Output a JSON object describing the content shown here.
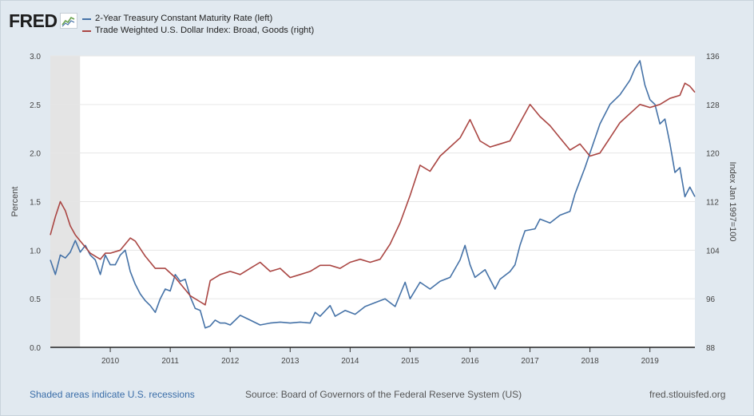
{
  "brand": {
    "logo_text": "FRED"
  },
  "chart_data": {
    "type": "line",
    "x_range": [
      "2009-01-01",
      "2019-10-01"
    ],
    "x_ticks": [
      "2010",
      "2011",
      "2012",
      "2013",
      "2014",
      "2015",
      "2016",
      "2017",
      "2018",
      "2019"
    ],
    "y_left": {
      "label": "Percent",
      "ticks": [
        "0.0",
        "0.5",
        "1.0",
        "1.5",
        "2.0",
        "2.5",
        "3.0"
      ],
      "range": [
        0,
        3
      ]
    },
    "y_right": {
      "label": "Index Jan 1997=100",
      "ticks": [
        "88",
        "96",
        "104",
        "112",
        "120",
        "128",
        "136"
      ],
      "range": [
        88,
        136
      ]
    },
    "recession": {
      "start": "2009-01-01",
      "end": "2009-06-30"
    },
    "grid": true,
    "legend_position": "top-left",
    "series": [
      {
        "name": "2-Year Treasury Constant Maturity Rate (left)",
        "axis": "left",
        "color": "#4572a7",
        "points": [
          [
            "2009-01",
            0.9
          ],
          [
            "2009-02",
            0.75
          ],
          [
            "2009-03",
            0.95
          ],
          [
            "2009-04",
            0.92
          ],
          [
            "2009-05",
            0.98
          ],
          [
            "2009-06",
            1.1
          ],
          [
            "2009-07",
            0.98
          ],
          [
            "2009-08",
            1.05
          ],
          [
            "2009-09",
            0.95
          ],
          [
            "2009-10",
            0.9
          ],
          [
            "2009-11",
            0.75
          ],
          [
            "2009-12",
            0.95
          ],
          [
            "2010-01",
            0.85
          ],
          [
            "2010-02",
            0.85
          ],
          [
            "2010-03",
            0.95
          ],
          [
            "2010-04",
            1.0
          ],
          [
            "2010-05",
            0.78
          ],
          [
            "2010-06",
            0.65
          ],
          [
            "2010-07",
            0.55
          ],
          [
            "2010-08",
            0.48
          ],
          [
            "2010-09",
            0.43
          ],
          [
            "2010-10",
            0.36
          ],
          [
            "2010-11",
            0.5
          ],
          [
            "2010-12",
            0.6
          ],
          [
            "2011-01",
            0.58
          ],
          [
            "2011-02",
            0.75
          ],
          [
            "2011-03",
            0.68
          ],
          [
            "2011-04",
            0.7
          ],
          [
            "2011-05",
            0.52
          ],
          [
            "2011-06",
            0.4
          ],
          [
            "2011-07",
            0.38
          ],
          [
            "2011-08",
            0.2
          ],
          [
            "2011-09",
            0.22
          ],
          [
            "2011-10",
            0.28
          ],
          [
            "2011-11",
            0.25
          ],
          [
            "2011-12",
            0.25
          ],
          [
            "2012-01",
            0.23
          ],
          [
            "2012-03",
            0.33
          ],
          [
            "2012-05",
            0.28
          ],
          [
            "2012-07",
            0.23
          ],
          [
            "2012-09",
            0.25
          ],
          [
            "2012-11",
            0.26
          ],
          [
            "2013-01",
            0.25
          ],
          [
            "2013-03",
            0.26
          ],
          [
            "2013-05",
            0.25
          ],
          [
            "2013-06",
            0.36
          ],
          [
            "2013-07",
            0.32
          ],
          [
            "2013-09",
            0.43
          ],
          [
            "2013-10",
            0.32
          ],
          [
            "2013-12",
            0.38
          ],
          [
            "2014-02",
            0.34
          ],
          [
            "2014-04",
            0.42
          ],
          [
            "2014-06",
            0.46
          ],
          [
            "2014-08",
            0.5
          ],
          [
            "2014-10",
            0.42
          ],
          [
            "2014-12",
            0.67
          ],
          [
            "2015-01",
            0.5
          ],
          [
            "2015-03",
            0.67
          ],
          [
            "2015-05",
            0.6
          ],
          [
            "2015-07",
            0.68
          ],
          [
            "2015-09",
            0.72
          ],
          [
            "2015-11",
            0.9
          ],
          [
            "2015-12",
            1.05
          ],
          [
            "2016-01",
            0.85
          ],
          [
            "2016-02",
            0.72
          ],
          [
            "2016-04",
            0.8
          ],
          [
            "2016-06",
            0.6
          ],
          [
            "2016-07",
            0.7
          ],
          [
            "2016-09",
            0.78
          ],
          [
            "2016-10",
            0.85
          ],
          [
            "2016-11",
            1.05
          ],
          [
            "2016-12",
            1.2
          ],
          [
            "2017-02",
            1.22
          ],
          [
            "2017-03",
            1.32
          ],
          [
            "2017-05",
            1.28
          ],
          [
            "2017-07",
            1.36
          ],
          [
            "2017-09",
            1.4
          ],
          [
            "2017-10",
            1.58
          ],
          [
            "2017-12",
            1.85
          ],
          [
            "2018-01",
            2.0
          ],
          [
            "2018-03",
            2.3
          ],
          [
            "2018-05",
            2.5
          ],
          [
            "2018-07",
            2.6
          ],
          [
            "2018-09",
            2.75
          ],
          [
            "2018-10",
            2.87
          ],
          [
            "2018-11",
            2.95
          ],
          [
            "2018-12",
            2.7
          ],
          [
            "2019-01",
            2.55
          ],
          [
            "2019-02",
            2.5
          ],
          [
            "2019-03",
            2.3
          ],
          [
            "2019-04",
            2.35
          ],
          [
            "2019-05",
            2.1
          ],
          [
            "2019-06",
            1.8
          ],
          [
            "2019-07",
            1.85
          ],
          [
            "2019-08",
            1.55
          ],
          [
            "2019-09",
            1.65
          ],
          [
            "2019-10",
            1.55
          ]
        ]
      },
      {
        "name": "Trade Weighted U.S. Dollar Index: Broad, Goods (right)",
        "axis": "right",
        "color": "#aa4643",
        "points": [
          [
            "2009-01",
            106.5
          ],
          [
            "2009-02",
            109.5
          ],
          [
            "2009-03",
            112.0
          ],
          [
            "2009-04",
            110.5
          ],
          [
            "2009-05",
            108.0
          ],
          [
            "2009-06",
            106.5
          ],
          [
            "2009-07",
            105.5
          ],
          [
            "2009-08",
            104.5
          ],
          [
            "2009-09",
            103.5
          ],
          [
            "2009-10",
            103.0
          ],
          [
            "2009-11",
            102.5
          ],
          [
            "2009-12",
            103.5
          ],
          [
            "2010-01",
            103.5
          ],
          [
            "2010-03",
            104.0
          ],
          [
            "2010-05",
            106.0
          ],
          [
            "2010-06",
            105.5
          ],
          [
            "2010-08",
            103.0
          ],
          [
            "2010-10",
            101.0
          ],
          [
            "2010-12",
            101.0
          ],
          [
            "2011-02",
            99.5
          ],
          [
            "2011-04",
            97.5
          ],
          [
            "2011-05",
            96.5
          ],
          [
            "2011-07",
            95.5
          ],
          [
            "2011-08",
            95.0
          ],
          [
            "2011-09",
            99.0
          ],
          [
            "2011-11",
            100.0
          ],
          [
            "2012-01",
            100.5
          ],
          [
            "2012-03",
            100.0
          ],
          [
            "2012-05",
            101.0
          ],
          [
            "2012-07",
            102.0
          ],
          [
            "2012-09",
            100.5
          ],
          [
            "2012-11",
            101.0
          ],
          [
            "2013-01",
            99.5
          ],
          [
            "2013-03",
            100.0
          ],
          [
            "2013-05",
            100.5
          ],
          [
            "2013-07",
            101.5
          ],
          [
            "2013-09",
            101.5
          ],
          [
            "2013-11",
            101.0
          ],
          [
            "2014-01",
            102.0
          ],
          [
            "2014-03",
            102.5
          ],
          [
            "2014-05",
            102.0
          ],
          [
            "2014-07",
            102.5
          ],
          [
            "2014-09",
            105.0
          ],
          [
            "2014-11",
            108.5
          ],
          [
            "2015-01",
            113.0
          ],
          [
            "2015-03",
            118.0
          ],
          [
            "2015-05",
            117.0
          ],
          [
            "2015-07",
            119.5
          ],
          [
            "2015-09",
            121.0
          ],
          [
            "2015-11",
            122.5
          ],
          [
            "2016-01",
            125.5
          ],
          [
            "2016-03",
            122.0
          ],
          [
            "2016-05",
            121.0
          ],
          [
            "2016-07",
            121.5
          ],
          [
            "2016-09",
            122.0
          ],
          [
            "2016-11",
            125.0
          ],
          [
            "2017-01",
            128.0
          ],
          [
            "2017-03",
            126.0
          ],
          [
            "2017-05",
            124.5
          ],
          [
            "2017-07",
            122.5
          ],
          [
            "2017-09",
            120.5
          ],
          [
            "2017-11",
            121.5
          ],
          [
            "2018-01",
            119.5
          ],
          [
            "2018-03",
            120.0
          ],
          [
            "2018-05",
            122.5
          ],
          [
            "2018-07",
            125.0
          ],
          [
            "2018-09",
            126.5
          ],
          [
            "2018-11",
            128.0
          ],
          [
            "2019-01",
            127.5
          ],
          [
            "2019-03",
            128.0
          ],
          [
            "2019-05",
            129.0
          ],
          [
            "2019-07",
            129.5
          ],
          [
            "2019-08",
            131.5
          ],
          [
            "2019-09",
            131.0
          ],
          [
            "2019-10",
            130.0
          ]
        ]
      }
    ]
  },
  "footer": {
    "recession_note": "Shaded areas indicate U.S. recessions",
    "source": "Source: Board of Governors of the Federal Reserve System (US)",
    "site": "fred.stlouisfed.org"
  }
}
